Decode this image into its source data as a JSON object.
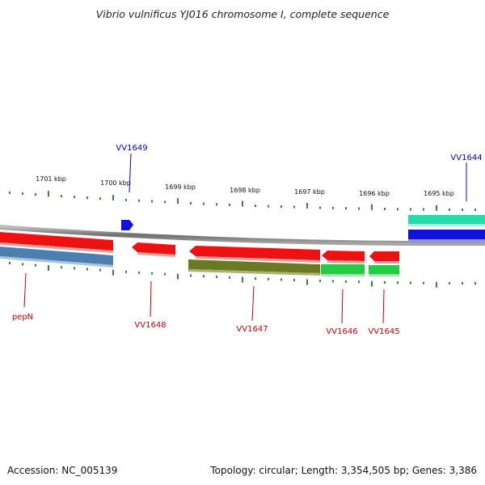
{
  "title": "Vibrio vulnificus YJ016 chromosome I, complete sequence",
  "footer": {
    "accession": "Accession: NC_005139",
    "topology": "Topology: circular; Length: 3,354,505 bp; Genes: 3,386"
  },
  "colors": {
    "reverse_strand_label": "#cc0000",
    "forward_strand_label": "#0000cc",
    "tick": "#2e8b2e",
    "backbone": "#8c8c8c"
  },
  "tick_labels": [
    "1701 kbp",
    "1700 kbp",
    "1699 kbp",
    "1698 kbp",
    "1697 kbp",
    "1696 kbp",
    "1695 kbp"
  ],
  "features": [
    {
      "id": "pepN-gene",
      "label": "pepN",
      "strand": "reverse",
      "color": "#ee1111"
    },
    {
      "id": "pepN-cds",
      "label": "",
      "strand": "reverse",
      "color": "#4a7fb0"
    },
    {
      "id": "VV1649-gene",
      "label": "VV1649",
      "strand": "forward",
      "color": "#1111dd"
    },
    {
      "id": "VV1648-gene",
      "label": "VV1648",
      "strand": "reverse",
      "color": "#ee1111"
    },
    {
      "id": "VV1647-gene",
      "label": "VV1647",
      "strand": "reverse",
      "color": "#ee1111"
    },
    {
      "id": "VV1647-cds",
      "label": "",
      "strand": "reverse",
      "color": "#6b7a22"
    },
    {
      "id": "VV1646-gene",
      "label": "VV1646",
      "strand": "reverse",
      "color": "#ee1111"
    },
    {
      "id": "VV1646-cds",
      "label": "",
      "strand": "reverse",
      "color": "#22cc44"
    },
    {
      "id": "VV1645-gene",
      "label": "VV1645",
      "strand": "reverse",
      "color": "#ee1111"
    },
    {
      "id": "VV1645-cds",
      "label": "",
      "strand": "reverse",
      "color": "#22cc44"
    },
    {
      "id": "VV1644-cds",
      "label": "",
      "strand": "forward",
      "color": "#22ddaa"
    },
    {
      "id": "VV1644-gene",
      "label": "VV1644",
      "strand": "forward",
      "color": "#1111dd"
    }
  ]
}
